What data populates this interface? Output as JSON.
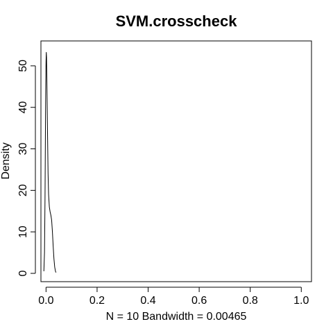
{
  "chart_data": {
    "type": "line",
    "title": "SVM.crosscheck",
    "xlabel": "N = 10   Bandwidth = 0.00465",
    "ylabel": "Density",
    "xlim": [
      -0.02,
      1.04
    ],
    "ylim": [
      -2,
      56
    ],
    "x_ticks": [
      0.0,
      0.2,
      0.4,
      0.6,
      0.8,
      1.0
    ],
    "x_tick_labels": [
      "0.0",
      "0.2",
      "0.4",
      "0.6",
      "0.8",
      "1.0"
    ],
    "y_ticks": [
      0,
      10,
      20,
      30,
      40,
      50
    ],
    "y_tick_labels": [
      "0",
      "10",
      "20",
      "30",
      "40",
      "50"
    ],
    "grid": false,
    "series": [
      {
        "x": [
          -0.0085,
          -0.006,
          -0.004,
          -0.002,
          -0.001,
          0.0,
          0.001,
          0.002,
          0.003,
          0.004,
          0.006,
          0.008,
          0.01,
          0.013,
          0.016,
          0.019,
          0.022,
          0.025,
          0.028,
          0.031,
          0.034,
          0.037,
          0.039
        ],
        "y": [
          0.5,
          5,
          18,
          38,
          46,
          51,
          53.3,
          52,
          48,
          43,
          33,
          24,
          19,
          16,
          14.8,
          14,
          12.8,
          10,
          6.5,
          3.5,
          1.5,
          0.5,
          0.2
        ]
      }
    ]
  }
}
